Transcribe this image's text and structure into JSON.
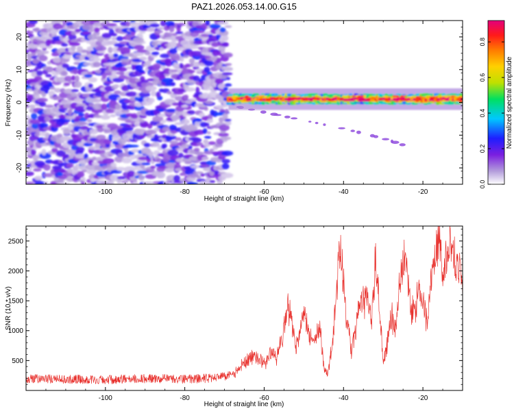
{
  "figure": {
    "title": "PAZ1.2026.053.14.00.G15"
  },
  "colors": {
    "snr_line": "#e8312d",
    "axis": "#000000",
    "colormap": [
      "#ffffff",
      "#b39ddb",
      "#7b1fe0",
      "#1e1eff",
      "#00c8ff",
      "#00e060",
      "#bfe000",
      "#ffd000",
      "#ff7a00",
      "#ff1a1a",
      "#e4007c"
    ]
  },
  "chart_data": [
    {
      "type": "heatmap",
      "name": "spectrogram",
      "xlabel": "Height of straight line (km)",
      "ylabel": "Frequency (Hz)",
      "xlim": [
        -120,
        -10
      ],
      "ylim": [
        -25,
        25
      ],
      "xticks": [
        -100,
        -80,
        -60,
        -40,
        -20
      ],
      "yticks": [
        -20,
        -10,
        0,
        10,
        20
      ],
      "xtick_labels": [
        "-100",
        "-80",
        "-60",
        "-40",
        "-20"
      ],
      "ytick_labels": [
        "-20",
        "-10",
        "0",
        "10",
        "20"
      ],
      "noise_region": {
        "x_range": [
          -120,
          -69
        ],
        "freq_range": [
          -25,
          25
        ],
        "amplitude_range": [
          0.05,
          0.3
        ]
      },
      "signal_band": {
        "x_range": [
          -69,
          -10
        ],
        "center_freq_hz": 1,
        "half_width_hz": 1.5,
        "amplitude_range": [
          0.45,
          0.9
        ]
      },
      "faint_branch": {
        "points": [
          [
            -68,
            -1
          ],
          [
            -60,
            -3
          ],
          [
            -50,
            -5.5
          ],
          [
            -40,
            -8
          ],
          [
            -30,
            -11
          ],
          [
            -25,
            -13
          ]
        ],
        "amplitude": 0.15
      },
      "colorbar": {
        "label": "Normalized spectral amplitude",
        "range": [
          0,
          0.92
        ],
        "ticks": [
          0.0,
          0.2,
          0.4,
          0.6,
          0.8
        ],
        "tick_labels": [
          "0.0",
          "0.2",
          "0.4",
          "0.6",
          "0.8"
        ]
      }
    },
    {
      "type": "line",
      "name": "snr",
      "xlabel": "Height of straight line (km)",
      "ylabel": "SNR (10 * v/v)",
      "xlim": [
        -120,
        -10
      ],
      "ylim": [
        0,
        2750
      ],
      "xticks": [
        -100,
        -80,
        -60,
        -40,
        -20
      ],
      "yticks": [
        500,
        1000,
        1500,
        2000,
        2500
      ],
      "xtick_labels": [
        "-100",
        "-80",
        "-60",
        "-40",
        "-20"
      ],
      "ytick_labels": [
        "500",
        "1000",
        "1500",
        "2000",
        "2500"
      ],
      "series": [
        {
          "name": "SNR",
          "x": [
            -120,
            -110,
            -100,
            -90,
            -80,
            -72,
            -68,
            -66,
            -64,
            -62,
            -60,
            -58,
            -57,
            -55,
            -54,
            -52,
            -50,
            -48,
            -47,
            -46,
            -45,
            -44,
            -43,
            -42,
            -41,
            -40,
            -39,
            -38,
            -36,
            -34,
            -33,
            -32,
            -31,
            -30,
            -29,
            -28,
            -27,
            -26,
            -25,
            -24,
            -23,
            -22,
            -21,
            -20,
            -19,
            -18,
            -17,
            -16,
            -15,
            -14,
            -13,
            -12,
            -11,
            -10
          ],
          "values": [
            200,
            190,
            180,
            200,
            190,
            210,
            260,
            380,
            530,
            560,
            430,
            670,
            500,
            1050,
            1450,
            700,
            1300,
            800,
            900,
            1100,
            380,
            250,
            700,
            1400,
            2350,
            1800,
            1100,
            650,
            1350,
            1600,
            1100,
            2100,
            1400,
            450,
            800,
            1300,
            1000,
            1650,
            2100,
            2000,
            1400,
            1350,
            1600,
            1450,
            1150,
            1850,
            2150,
            2750,
            1850,
            2150,
            2450,
            2300,
            2000,
            1800
          ]
        }
      ]
    }
  ]
}
